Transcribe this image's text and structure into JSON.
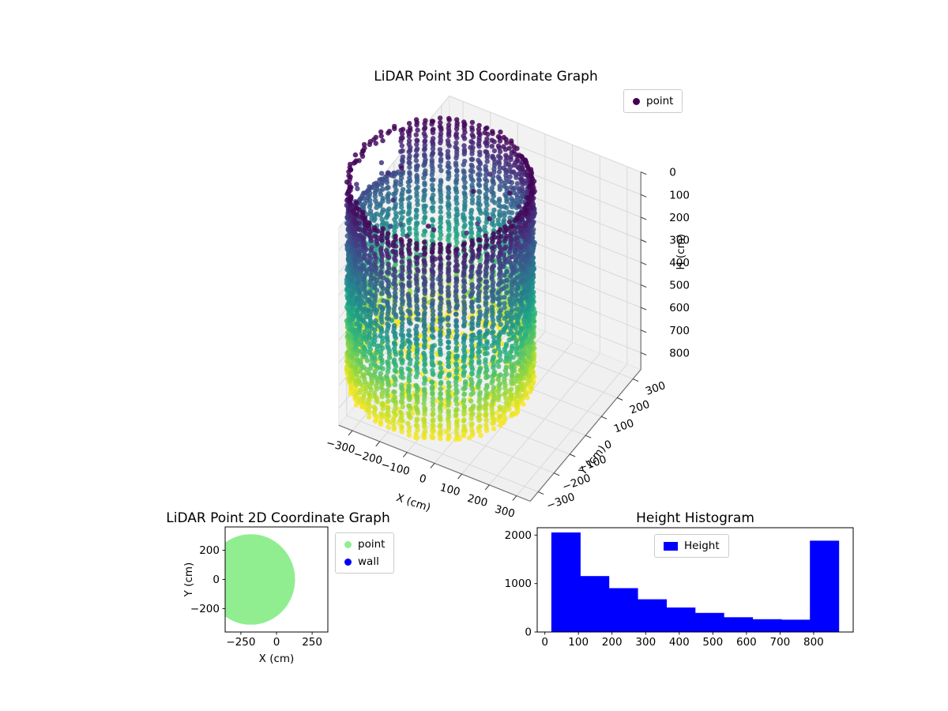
{
  "figure": {
    "background": "#ffffff"
  },
  "chart_data": [
    {
      "id": "lidar-3d",
      "type": "scatter",
      "projection": "3d",
      "title": "LiDAR Point 3D Coordinate Graph",
      "xlabel": "X (cm)",
      "ylabel": "Y (cm)",
      "zlabel": "H (cm)",
      "xlim": [
        -350,
        350
      ],
      "ylim": [
        -350,
        350
      ],
      "zlim": [
        0,
        875
      ],
      "z_inverted": true,
      "xticks": [
        -300,
        -200,
        -100,
        0,
        100,
        200,
        300
      ],
      "yticks": [
        -300,
        -200,
        -100,
        0,
        100,
        200,
        300
      ],
      "zticks": [
        0,
        100,
        200,
        300,
        400,
        500,
        600,
        700,
        800
      ],
      "view": {
        "azim": -60,
        "elev": 30
      },
      "colormap": "viridis",
      "legend": [
        {
          "label": "point",
          "color": "#440154",
          "marker": "circle"
        }
      ],
      "point_cloud": {
        "shape": "cylinder-wall",
        "center_x": -180,
        "center_y": 0,
        "radius": 290,
        "height_min": 0,
        "height_max": 875,
        "n_columns": 72,
        "vertical_step_cm": 13,
        "door_gap_deg": [
          150,
          202
        ],
        "door_gap_height_max": 215,
        "floor_points_height": [
          850,
          875
        ],
        "color_by": "height"
      }
    },
    {
      "id": "lidar-2d",
      "type": "scatter",
      "title": "LiDAR Point 2D Coordinate Graph",
      "xlabel": "X (cm)",
      "ylabel": "Y (cm)",
      "xlim": [
        -360,
        360
      ],
      "ylim": [
        -360,
        360
      ],
      "xticks": [
        -250,
        0,
        250
      ],
      "yticks": [
        -200,
        0,
        200
      ],
      "legend": [
        {
          "label": "point",
          "color": "#90ee90",
          "marker": "circle"
        },
        {
          "label": "wall",
          "color": "#0000ff",
          "marker": "circle"
        }
      ],
      "region": {
        "shape": "disk",
        "center": [
          -180,
          0
        ],
        "radius": 310,
        "color": "#90ee90"
      }
    },
    {
      "id": "height-histogram",
      "type": "bar",
      "title": "Height Histogram",
      "xlabel": "",
      "ylabel": "",
      "bar_color": "#0000ff",
      "legend": [
        {
          "label": "Height",
          "color": "#0000ff",
          "marker": "square"
        }
      ],
      "bin_edges": [
        20,
        105.5,
        191,
        276.5,
        362,
        447.5,
        533,
        618.5,
        704,
        789.5,
        875
      ],
      "values": [
        2050,
        1150,
        900,
        670,
        500,
        390,
        300,
        260,
        250,
        1880
      ],
      "xlim": [
        -22.75,
        917.75
      ],
      "ylim": [
        0,
        2152
      ],
      "xticks": [
        0,
        100,
        200,
        300,
        400,
        500,
        600,
        700,
        800
      ],
      "yticks": [
        0,
        1000,
        2000
      ]
    }
  ]
}
